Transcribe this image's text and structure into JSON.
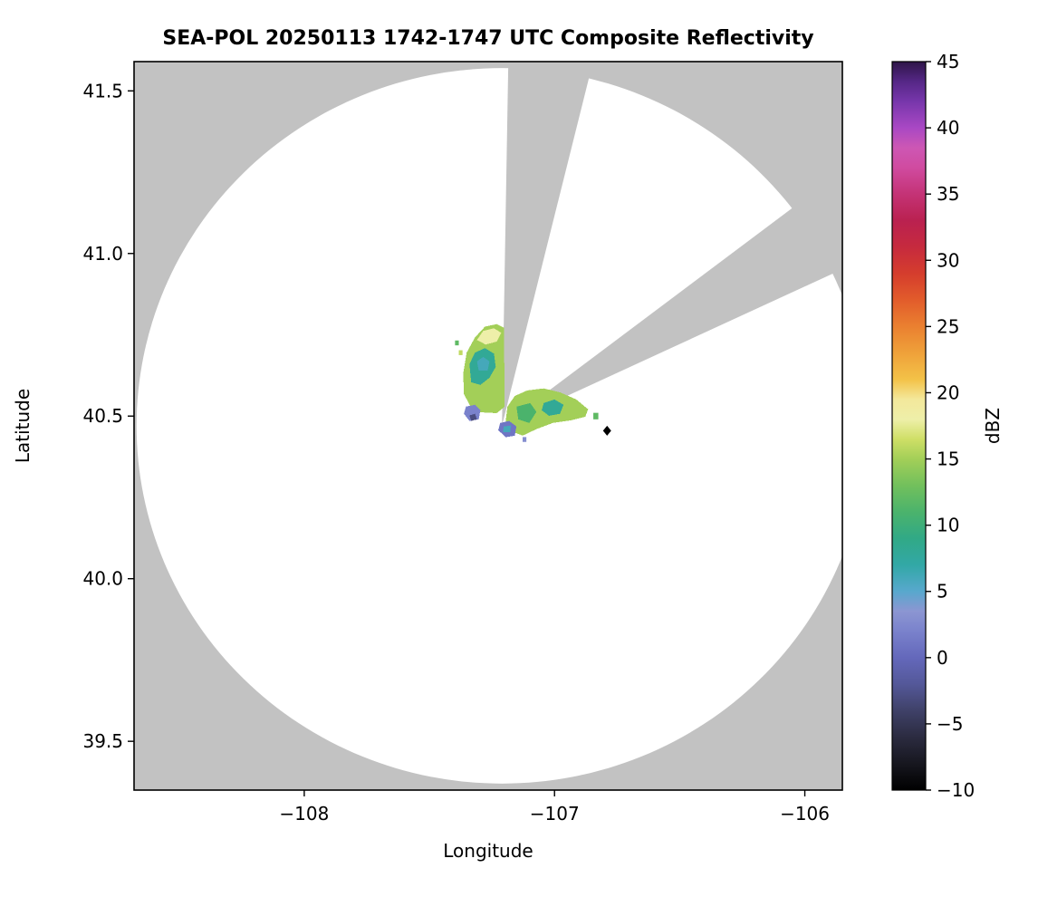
{
  "figure": {
    "background": "#ffffff",
    "plot_bg_nodata": "#c2c2c2",
    "coverage_fill": "#ffffff",
    "frame_color": "#000000"
  },
  "chart_data": {
    "type": "heatmap",
    "title": "SEA-POL 20250113 1742-1747 UTC Composite Reflectivity",
    "xlabel": "Longitude",
    "ylabel": "Latitude",
    "x_range": [
      -108.68,
      -105.85
    ],
    "y_range": [
      39.35,
      41.59
    ],
    "x_ticks": [
      {
        "value": -108,
        "label": "−108"
      },
      {
        "value": -107,
        "label": "−107"
      },
      {
        "value": -106,
        "label": "−106"
      }
    ],
    "y_ticks": [
      {
        "value": 39.5,
        "label": "39.5"
      },
      {
        "value": 40.0,
        "label": "40.0"
      },
      {
        "value": 40.5,
        "label": "40.5"
      },
      {
        "value": 41.0,
        "label": "41.0"
      },
      {
        "value": 41.5,
        "label": "41.5"
      }
    ],
    "radar": {
      "center_lon": -107.21,
      "center_lat": 40.47,
      "coverage_radius_lon_deg": 1.46,
      "coverage_radius_lat_deg": 1.1,
      "blocked_sectors_azimuth_deg": [
        [
          1.3,
          18
        ],
        [
          60,
          70.5
        ]
      ]
    },
    "colorbar": {
      "label": "dBZ",
      "min": -10,
      "max": 45,
      "ticks": [
        {
          "value": -10,
          "label": "−10"
        },
        {
          "value": -5,
          "label": "−5"
        },
        {
          "value": 0,
          "label": "0"
        },
        {
          "value": 5,
          "label": "5"
        },
        {
          "value": 10,
          "label": "10"
        },
        {
          "value": 15,
          "label": "15"
        },
        {
          "value": 20,
          "label": "20"
        },
        {
          "value": 25,
          "label": "25"
        },
        {
          "value": 30,
          "label": "30"
        },
        {
          "value": 35,
          "label": "35"
        },
        {
          "value": 40,
          "label": "40"
        },
        {
          "value": 45,
          "label": "45"
        }
      ],
      "stops": [
        [
          -10,
          "#000000"
        ],
        [
          -8,
          "#17171f"
        ],
        [
          -6,
          "#2b2b40"
        ],
        [
          -4,
          "#3f4168"
        ],
        [
          -2,
          "#545899"
        ],
        [
          0,
          "#6468bb"
        ],
        [
          2,
          "#7a82cc"
        ],
        [
          3.5,
          "#8c96d2"
        ],
        [
          5,
          "#58a8cd"
        ],
        [
          7,
          "#32a8a6"
        ],
        [
          9,
          "#31a986"
        ],
        [
          11,
          "#4bb36c"
        ],
        [
          13,
          "#72c05c"
        ],
        [
          15,
          "#a3cf58"
        ],
        [
          16.5,
          "#cfdf66"
        ],
        [
          18,
          "#eeefa9"
        ],
        [
          19.5,
          "#f3e89b"
        ],
        [
          21,
          "#f3c248"
        ],
        [
          23,
          "#efa13a"
        ],
        [
          25,
          "#ea8030"
        ],
        [
          27,
          "#e25c2b"
        ],
        [
          29,
          "#d53d2d"
        ],
        [
          31,
          "#c62a3e"
        ],
        [
          33,
          "#ba2150"
        ],
        [
          35,
          "#c43376"
        ],
        [
          37,
          "#d04ba0"
        ],
        [
          38.5,
          "#cd57b4"
        ],
        [
          40,
          "#a948c4"
        ],
        [
          42,
          "#7736ab"
        ],
        [
          43.5,
          "#552786"
        ],
        [
          45,
          "#2e1548"
        ]
      ]
    },
    "site_marker": {
      "lon": -106.79,
      "lat": 40.455,
      "symbol": "diamond",
      "color": "#000000"
    },
    "echo_regions": [
      {
        "name": "north-lobe-base",
        "dbz": 15,
        "polygon": [
          [
            -107.325,
            40.513
          ],
          [
            -107.362,
            40.568
          ],
          [
            -107.365,
            40.631
          ],
          [
            -107.351,
            40.695
          ],
          [
            -107.318,
            40.742
          ],
          [
            -107.278,
            40.775
          ],
          [
            -107.231,
            40.783
          ],
          [
            -107.202,
            40.772
          ],
          [
            -107.199,
            40.529
          ],
          [
            -107.231,
            40.509
          ]
        ]
      },
      {
        "name": "north-lobe-yellow-top",
        "dbz": 18,
        "polygon": [
          [
            -107.31,
            40.734
          ],
          [
            -107.285,
            40.762
          ],
          [
            -107.242,
            40.77
          ],
          [
            -107.213,
            40.756
          ],
          [
            -107.231,
            40.729
          ],
          [
            -107.275,
            40.72
          ]
        ]
      },
      {
        "name": "north-lobe-teal",
        "dbz": 8,
        "polygon": [
          [
            -107.333,
            40.604
          ],
          [
            -107.34,
            40.66
          ],
          [
            -107.318,
            40.695
          ],
          [
            -107.278,
            40.709
          ],
          [
            -107.242,
            40.692
          ],
          [
            -107.235,
            40.651
          ],
          [
            -107.26,
            40.618
          ],
          [
            -107.296,
            40.596
          ]
        ]
      },
      {
        "name": "north-lobe-teal-core",
        "dbz": 6,
        "polygon": [
          [
            -107.303,
            40.64
          ],
          [
            -107.31,
            40.668
          ],
          [
            -107.285,
            40.682
          ],
          [
            -107.26,
            40.668
          ],
          [
            -107.267,
            40.64
          ]
        ]
      },
      {
        "name": "east-lobe-base",
        "dbz": 15,
        "polygon": [
          [
            -107.188,
            40.529
          ],
          [
            -107.159,
            40.562
          ],
          [
            -107.109,
            40.579
          ],
          [
            -107.043,
            40.585
          ],
          [
            -106.978,
            40.573
          ],
          [
            -106.913,
            40.551
          ],
          [
            -106.866,
            40.521
          ],
          [
            -106.877,
            40.498
          ],
          [
            -106.935,
            40.487
          ],
          [
            -107.007,
            40.479
          ],
          [
            -107.072,
            40.46
          ],
          [
            -107.127,
            40.44
          ],
          [
            -107.166,
            40.451
          ],
          [
            -107.195,
            40.485
          ]
        ]
      },
      {
        "name": "east-lobe-green",
        "dbz": 11,
        "polygon": [
          [
            -107.152,
            40.529
          ],
          [
            -107.097,
            40.54
          ],
          [
            -107.072,
            40.513
          ],
          [
            -107.101,
            40.479
          ],
          [
            -107.145,
            40.49
          ]
        ]
      },
      {
        "name": "east-lobe-teal",
        "dbz": 8,
        "polygon": [
          [
            -107.043,
            40.54
          ],
          [
            -107.0,
            40.551
          ],
          [
            -106.964,
            40.535
          ],
          [
            -106.978,
            40.507
          ],
          [
            -107.022,
            40.501
          ],
          [
            -107.051,
            40.518
          ]
        ]
      },
      {
        "name": "west-lavender-patch",
        "dbz": 2,
        "polygon": [
          [
            -107.354,
            40.529
          ],
          [
            -107.318,
            40.535
          ],
          [
            -107.296,
            40.518
          ],
          [
            -107.303,
            40.49
          ],
          [
            -107.34,
            40.485
          ],
          [
            -107.362,
            40.507
          ]
        ]
      },
      {
        "name": "west-dark-speck",
        "dbz": -3,
        "polygon": [
          [
            -107.34,
            40.502
          ],
          [
            -107.318,
            40.507
          ],
          [
            -107.31,
            40.49
          ],
          [
            -107.333,
            40.485
          ]
        ]
      },
      {
        "name": "south-lavender-blob",
        "dbz": 1,
        "polygon": [
          [
            -107.217,
            40.479
          ],
          [
            -107.181,
            40.485
          ],
          [
            -107.152,
            40.468
          ],
          [
            -107.159,
            40.44
          ],
          [
            -107.195,
            40.435
          ],
          [
            -107.225,
            40.457
          ]
        ]
      },
      {
        "name": "south-blob-teal",
        "dbz": 6,
        "polygon": [
          [
            -107.203,
            40.468
          ],
          [
            -107.174,
            40.471
          ],
          [
            -107.177,
            40.451
          ],
          [
            -107.206,
            40.451
          ]
        ]
      }
    ],
    "echo_spots": [
      {
        "lon": -107.39,
        "lat": 40.725,
        "dbz": 12,
        "size": 0.015
      },
      {
        "lon": -106.835,
        "lat": 40.5,
        "dbz": 12,
        "size": 0.02
      },
      {
        "lon": -107.12,
        "lat": 40.428,
        "dbz": 3,
        "size": 0.015
      },
      {
        "lon": -107.375,
        "lat": 40.695,
        "dbz": 16,
        "size": 0.015
      }
    ]
  }
}
